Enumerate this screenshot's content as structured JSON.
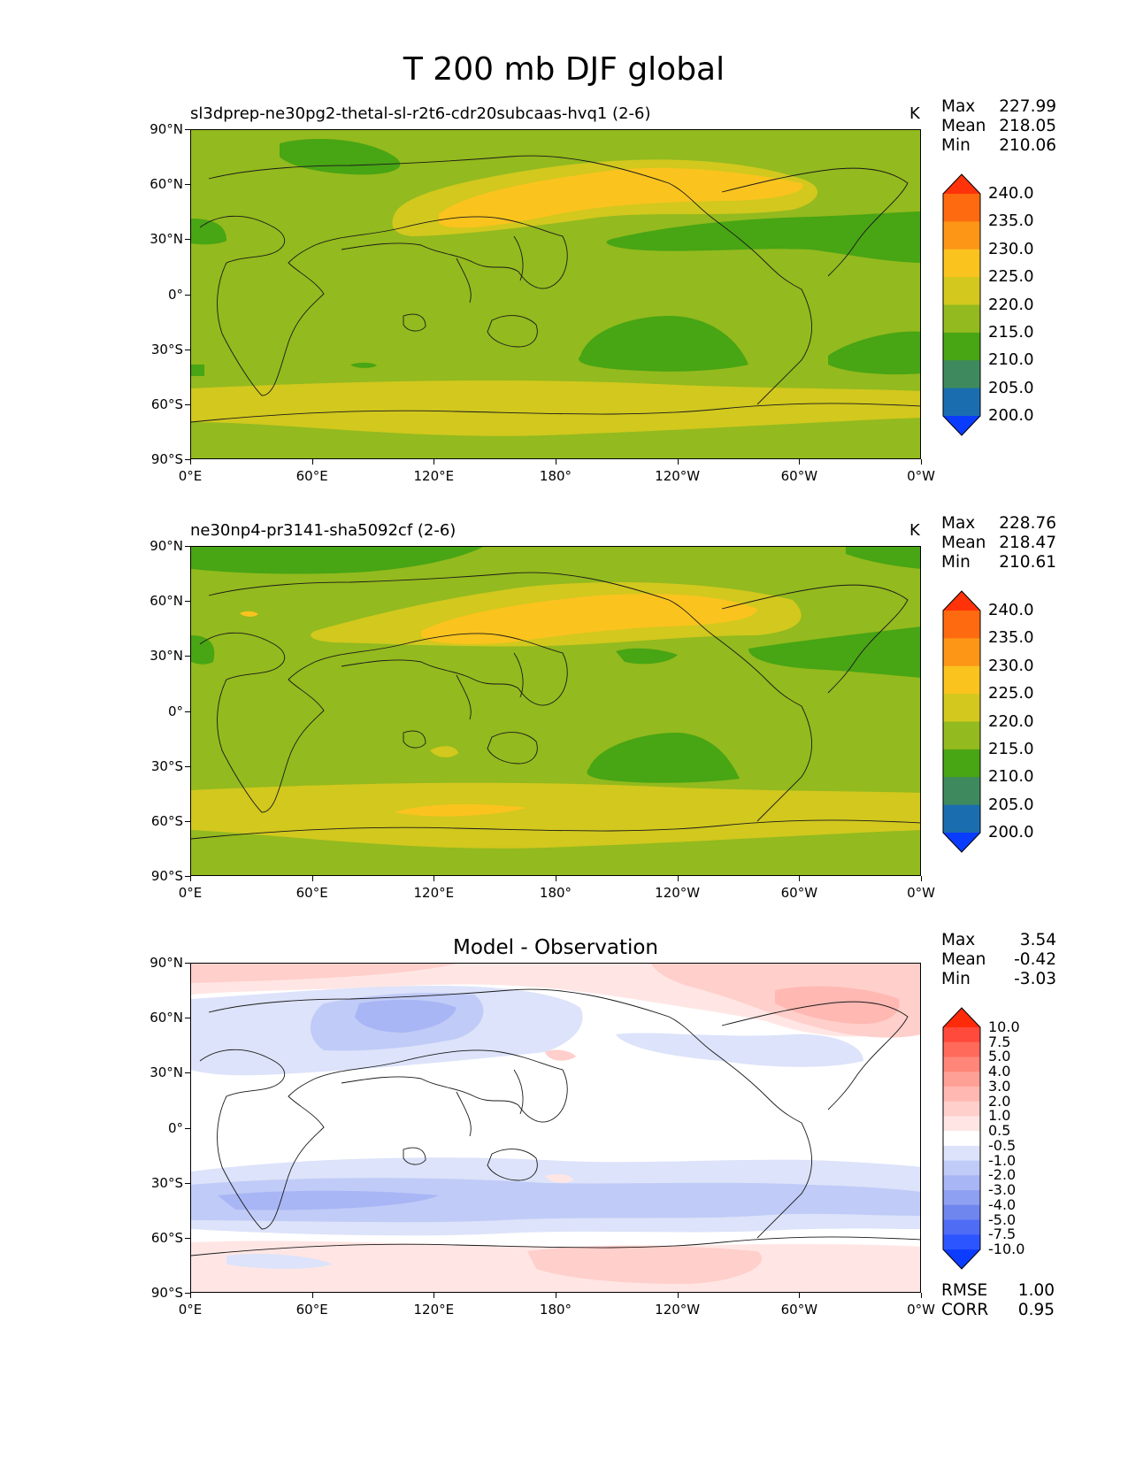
{
  "figure": {
    "title": "T 200 mb DJF global"
  },
  "axes": {
    "lat_labels": [
      "90°N",
      "60°N",
      "30°N",
      "0°",
      "30°S",
      "60°S",
      "90°S"
    ],
    "lon_labels": [
      "0°E",
      "60°E",
      "120°E",
      "180°",
      "120°W",
      "60°W",
      "0°W"
    ]
  },
  "panels": [
    {
      "title": "sl3dprep-ne30pg2-thetal-sl-r2t6-cdr20subcaas-hvq1 (2-6)",
      "units": "K",
      "stats": {
        "max_label": "Max",
        "max": "227.99",
        "mean_label": "Mean",
        "mean": "218.05",
        "min_label": "Min",
        "min": "210.06"
      },
      "colorbar": {
        "colors": [
          "#0a3cff",
          "#1a6eb0",
          "#3e8a5e",
          "#48a514",
          "#93ba1e",
          "#d2c81e",
          "#fac31e",
          "#fd9617",
          "#fd6a0f",
          "#ff320a"
        ],
        "labels": [
          "200.0",
          "205.0",
          "210.0",
          "215.0",
          "220.0",
          "225.0",
          "230.0",
          "235.0",
          "240.0"
        ]
      }
    },
    {
      "title": "ne30np4-pr3141-sha5092cf (2-6)",
      "units": "K",
      "stats": {
        "max_label": "Max",
        "max": "228.76",
        "mean_label": "Mean",
        "mean": "218.47",
        "min_label": "Min",
        "min": "210.61"
      },
      "colorbar": {
        "colors": [
          "#0a3cff",
          "#1a6eb0",
          "#3e8a5e",
          "#48a514",
          "#93ba1e",
          "#d2c81e",
          "#fac31e",
          "#fd9617",
          "#fd6a0f",
          "#ff320a"
        ],
        "labels": [
          "200.0",
          "205.0",
          "210.0",
          "215.0",
          "220.0",
          "225.0",
          "230.0",
          "235.0",
          "240.0"
        ]
      }
    },
    {
      "title": "Model - Observation",
      "stats": {
        "max_label": "Max",
        "max": "3.54",
        "mean_label": "Mean",
        "mean": "-0.42",
        "min_label": "Min",
        "min": "-3.03"
      },
      "colorbar": {
        "colors": [
          "#0c3cff",
          "#2d55ff",
          "#4f6cf5",
          "#6e86ee",
          "#8ea0f2",
          "#a8b6f5",
          "#c0cbf7",
          "#dce3fa",
          "#ffffff",
          "#ffe6e4",
          "#ffcfcb",
          "#ffb8b2",
          "#ffa097",
          "#ff8678",
          "#ff6a5a",
          "#ff4a3c",
          "#ff2a0a"
        ],
        "labels": [
          "-10.0",
          "-7.5",
          "-5.0",
          "-4.0",
          "-3.0",
          "-2.0",
          "-1.0",
          "-0.5",
          "0.5",
          "1.0",
          "2.0",
          "3.0",
          "4.0",
          "5.0",
          "7.5",
          "10.0"
        ]
      },
      "metrics": {
        "rmse_label": "RMSE",
        "rmse": "1.00",
        "corr_label": "CORR",
        "corr": "0.95"
      }
    }
  ],
  "colors": {
    "t_bg": "#93ba1e",
    "t_warm": "#d2c81e",
    "t_hot": "#fac31e",
    "t_cool": "#48a514",
    "d_neg1": "#dce3fa",
    "d_neg2": "#c0cbf7",
    "d_neg3": "#a8b6f5",
    "d_neg4": "#8ea0f2",
    "d_pos1": "#ffe6e4",
    "d_pos2": "#ffcfcb",
    "d_pos3": "#ffb8b2"
  }
}
